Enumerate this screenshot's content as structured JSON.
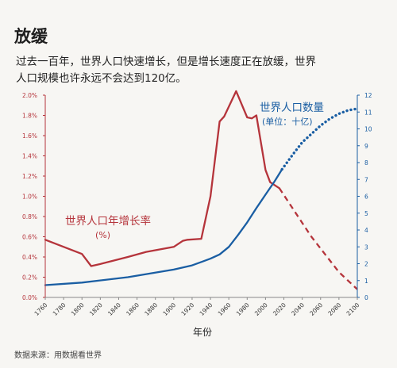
{
  "header": {
    "title": "放缓",
    "subtitle_line1": "过去一百年，世界人口快速增长，但是增长速度正在放缓，世界",
    "subtitle_line2": "人口规模也许永远不会达到120亿。"
  },
  "footer": {
    "source": "数据来源：用数据看世界"
  },
  "chart_data": {
    "type": "line",
    "xlabel": "年份",
    "x_ticks": [
      1760,
      1780,
      1800,
      1820,
      1840,
      1860,
      1880,
      1900,
      1920,
      1940,
      1960,
      1980,
      2000,
      2020,
      2040,
      2060,
      2080,
      2100
    ],
    "x_range": [
      1760,
      2100
    ],
    "left_axis": {
      "range": [
        0,
        2.0
      ],
      "ticks": [
        "0.0%",
        "0.2%",
        "0.4%",
        "0.6%",
        "0.8%",
        "1.0%",
        "1.2%",
        "1.4%",
        "1.6%",
        "1.8%",
        "2.0%"
      ],
      "color": "#b5343b"
    },
    "right_axis": {
      "range": [
        0,
        12
      ],
      "ticks": [
        "0",
        "1",
        "2",
        "3",
        "4",
        "5",
        "6",
        "7",
        "8",
        "9",
        "10",
        "11",
        "12"
      ],
      "color": "#1a5ea3"
    },
    "series": [
      {
        "name": "世界人口年增长率",
        "unit_label": "(%)",
        "axis": "left",
        "color": "#b5343b",
        "style": "solid",
        "points": [
          [
            1760,
            0.57
          ],
          [
            1800,
            0.43
          ],
          [
            1810,
            0.31
          ],
          [
            1820,
            0.33
          ],
          [
            1850,
            0.4
          ],
          [
            1870,
            0.45
          ],
          [
            1900,
            0.5
          ],
          [
            1910,
            0.56
          ],
          [
            1915,
            0.57
          ],
          [
            1930,
            0.58
          ],
          [
            1940,
            1.0
          ],
          [
            1950,
            1.74
          ],
          [
            1955,
            1.79
          ],
          [
            1968,
            2.04
          ],
          [
            1980,
            1.78
          ],
          [
            1985,
            1.77
          ],
          [
            1990,
            1.8
          ],
          [
            2000,
            1.26
          ],
          [
            2005,
            1.14
          ],
          [
            2015,
            1.08
          ]
        ]
      },
      {
        "name": "世界人口年增长率（预测）",
        "axis": "left",
        "color": "#b5343b",
        "style": "dashed",
        "points": [
          [
            2015,
            1.08
          ],
          [
            2050,
            0.6
          ],
          [
            2080,
            0.25
          ],
          [
            2100,
            0.08
          ]
        ]
      },
      {
        "name": "世界人口数量",
        "unit_label": "(单位：十亿)",
        "axis": "right",
        "color": "#1a5ea3",
        "style": "solid",
        "points": [
          [
            1760,
            0.73
          ],
          [
            1800,
            0.88
          ],
          [
            1850,
            1.2
          ],
          [
            1900,
            1.65
          ],
          [
            1920,
            1.9
          ],
          [
            1940,
            2.3
          ],
          [
            1950,
            2.55
          ],
          [
            1960,
            3.0
          ],
          [
            1970,
            3.7
          ],
          [
            1980,
            4.45
          ],
          [
            1990,
            5.3
          ],
          [
            2000,
            6.1
          ],
          [
            2010,
            6.9
          ],
          [
            2018,
            7.6
          ]
        ]
      },
      {
        "name": "世界人口数量（预测）",
        "axis": "right",
        "color": "#1a5ea3",
        "style": "dotted",
        "points": [
          [
            2018,
            7.6
          ],
          [
            2030,
            8.5
          ],
          [
            2040,
            9.2
          ],
          [
            2050,
            9.7
          ],
          [
            2060,
            10.2
          ],
          [
            2070,
            10.6
          ],
          [
            2080,
            10.9
          ],
          [
            2090,
            11.1
          ],
          [
            2100,
            11.2
          ]
        ]
      }
    ]
  }
}
